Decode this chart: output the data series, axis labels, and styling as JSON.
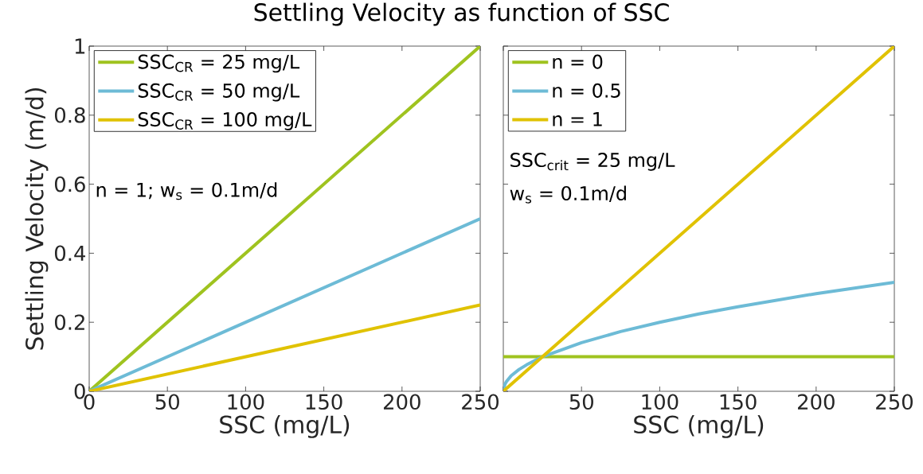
{
  "chart_data": [
    {
      "type": "line",
      "title": "Settling Velocity as function of SSC",
      "xlabel": "SSC (mg/L)",
      "ylabel": "Settling Velocity (m/d)",
      "xlim": [
        0,
        250
      ],
      "ylim": [
        0,
        1
      ],
      "xticks": [
        0,
        50,
        100,
        150,
        200,
        250
      ],
      "yticks": [
        0,
        0.2,
        0.4,
        0.6,
        0.8,
        1
      ],
      "legend": "top left",
      "annotations": [
        "n = 1; w$_{s}$ = 0.1m/d"
      ],
      "series": [
        {
          "name": "SSC$_{CR}$ = 25 mg/L",
          "color": "#9fc31f",
          "x": [
            0,
            250
          ],
          "values": [
            0,
            1
          ]
        },
        {
          "name": "SSC$_{CR}$ = 50 mg/L",
          "color": "#6dbbd6",
          "x": [
            0,
            250
          ],
          "values": [
            0,
            0.5
          ]
        },
        {
          "name": "SSC$_{CR}$ = 100 mg/L",
          "color": "#e0c200",
          "x": [
            0,
            250
          ],
          "values": [
            0,
            0.25
          ]
        }
      ]
    },
    {
      "type": "line",
      "xlabel": "SSC (mg/L)",
      "xlim": [
        0,
        250
      ],
      "ylim": [
        0,
        1
      ],
      "xticks": [
        {
          "value": 0,
          "label": null
        },
        50,
        100,
        150,
        200,
        250
      ],
      "yticks": [
        0,
        0.2,
        0.4,
        0.6,
        0.8,
        1
      ],
      "tick_labels": "x",
      "legend": "top left",
      "annotations": [
        "SSC$_{crit}$ = 25 mg/L",
        "w$_{s}$ = 0.1m/d"
      ],
      "series": [
        {
          "name": "n = 0",
          "color": "#9fc31f",
          "x": [
            0,
            250
          ],
          "values": [
            0.1,
            0.1
          ]
        },
        {
          "name": "n = 0.5",
          "color": "#6dbbd6",
          "x": [
            0,
            1,
            2,
            5,
            10,
            15,
            25,
            50,
            75,
            100,
            125,
            150,
            200,
            250
          ],
          "values": [
            0,
            0.02,
            0.028,
            0.045,
            0.063,
            0.077,
            0.1,
            0.141,
            0.173,
            0.2,
            0.224,
            0.245,
            0.283,
            0.316
          ]
        },
        {
          "name": "n = 1",
          "color": "#e0c200",
          "x": [
            0,
            250
          ],
          "values": [
            0,
            1
          ]
        }
      ]
    }
  ]
}
